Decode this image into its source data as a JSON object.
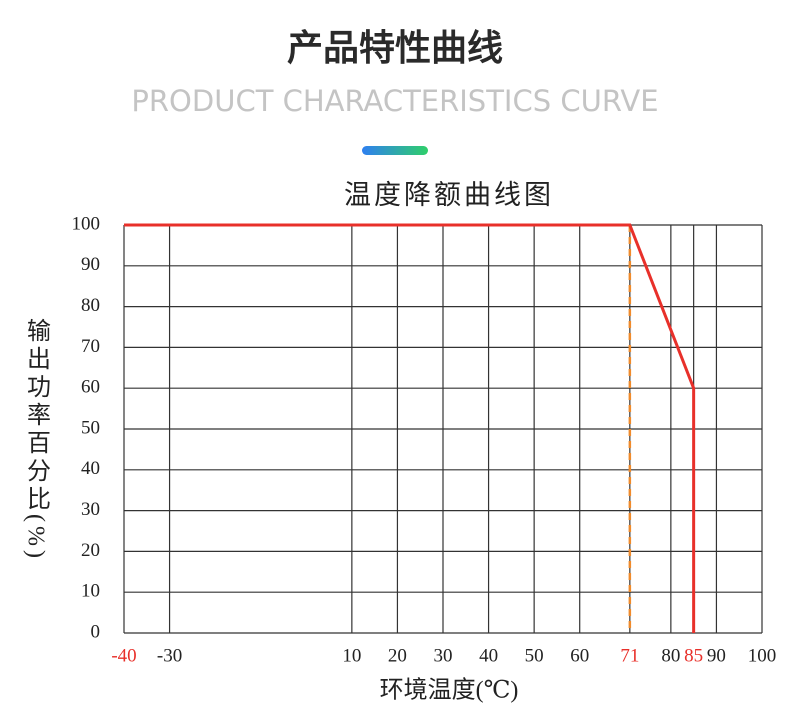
{
  "header": {
    "title": "产品特性曲线",
    "subtitle": "PRODUCT CHARACTERISTICS CURVE"
  },
  "chart_data": {
    "type": "line",
    "title": "温度降额曲线图",
    "x_label": "环境温度(℃)",
    "y_label": "输出功率百分比(%)",
    "xlim": [
      -40,
      100
    ],
    "xticks": [
      -40,
      -30,
      10,
      20,
      30,
      40,
      50,
      60,
      71,
      80,
      85,
      90,
      100
    ],
    "ylim": [
      0,
      100
    ],
    "yticks": [
      0,
      10,
      20,
      30,
      40,
      50,
      60,
      70,
      80,
      90,
      100
    ],
    "grid": true,
    "highlight_xticks": [
      -40,
      71,
      85
    ],
    "highlight_color": "#e8302a",
    "series": [
      {
        "color": "#e8302a",
        "x": [
          -40,
          71,
          85,
          85
        ],
        "values": [
          100,
          100,
          60,
          0
        ]
      }
    ],
    "reference_line": {
      "x": 71,
      "color": "#f08a2a",
      "style": "dashed"
    }
  }
}
